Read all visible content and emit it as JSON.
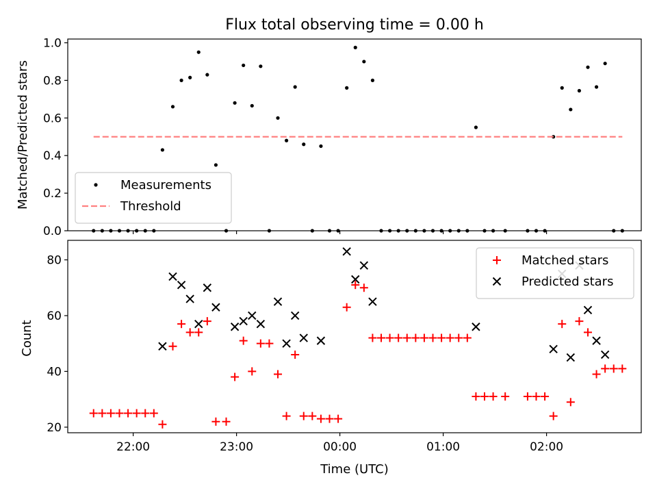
{
  "chart_data": [
    {
      "type": "scatter",
      "title": "Flux total observing time = 0.00 h",
      "xlabel": "",
      "ylabel": "Matched/Predicted stars",
      "xlim": [
        "21:22",
        "02:55"
      ],
      "ylim": [
        0,
        1.02
      ],
      "grid": false,
      "legend_position": "lower-left",
      "yticks": [
        {
          "value": 0.0,
          "label": "0.0"
        },
        {
          "value": 0.2,
          "label": "0.2"
        },
        {
          "value": 0.4,
          "label": "0.4"
        },
        {
          "value": 0.6,
          "label": "0.6"
        },
        {
          "value": 0.8,
          "label": "0.8"
        },
        {
          "value": 1.0,
          "label": "1.0"
        }
      ],
      "series": [
        {
          "name": "Measurements",
          "marker": "dot",
          "color": "#000000",
          "points": [
            [
              "21:37",
              0.0
            ],
            [
              "21:42",
              0.0
            ],
            [
              "21:47",
              0.0
            ],
            [
              "21:52",
              0.0
            ],
            [
              "21:57",
              0.0
            ],
            [
              "22:02",
              0.0
            ],
            [
              "22:07",
              0.0
            ],
            [
              "22:12",
              0.0
            ],
            [
              "22:17",
              0.43
            ],
            [
              "22:23",
              0.66
            ],
            [
              "22:28",
              0.8
            ],
            [
              "22:33",
              0.815
            ],
            [
              "22:38",
              0.95
            ],
            [
              "22:43",
              0.83
            ],
            [
              "22:48",
              0.35
            ],
            [
              "22:54",
              0.0
            ],
            [
              "22:59",
              0.68
            ],
            [
              "23:04",
              0.88
            ],
            [
              "23:09",
              0.665
            ],
            [
              "23:14",
              0.875
            ],
            [
              "23:19",
              0.0
            ],
            [
              "23:24",
              0.6
            ],
            [
              "23:29",
              0.48
            ],
            [
              "23:34",
              0.765
            ],
            [
              "23:39",
              0.46
            ],
            [
              "23:44",
              0.0
            ],
            [
              "23:49",
              0.45
            ],
            [
              "23:54",
              0.0
            ],
            [
              "23:59",
              0.0
            ],
            [
              "00:04",
              0.76
            ],
            [
              "00:09",
              0.975
            ],
            [
              "00:14",
              0.9
            ],
            [
              "00:19",
              0.8
            ],
            [
              "00:24",
              0.0
            ],
            [
              "00:29",
              0.0
            ],
            [
              "00:34",
              0.0
            ],
            [
              "00:39",
              0.0
            ],
            [
              "00:44",
              0.0
            ],
            [
              "00:49",
              0.0
            ],
            [
              "00:54",
              0.0
            ],
            [
              "00:59",
              0.0
            ],
            [
              "01:04",
              0.0
            ],
            [
              "01:09",
              0.0
            ],
            [
              "01:14",
              0.0
            ],
            [
              "01:19",
              0.55
            ],
            [
              "01:24",
              0.0
            ],
            [
              "01:29",
              0.0
            ],
            [
              "01:36",
              0.0
            ],
            [
              "01:49",
              0.0
            ],
            [
              "01:54",
              0.0
            ],
            [
              "01:59",
              0.0
            ],
            [
              "02:04",
              0.5
            ],
            [
              "02:09",
              0.76
            ],
            [
              "02:14",
              0.645
            ],
            [
              "02:19",
              0.745
            ],
            [
              "02:24",
              0.87
            ],
            [
              "02:29",
              0.765
            ],
            [
              "02:34",
              0.89
            ],
            [
              "02:39",
              0.0
            ],
            [
              "02:44",
              0.0
            ]
          ]
        },
        {
          "name": "Threshold",
          "marker": "dashed-line",
          "color": "#ff8080",
          "points": [
            [
              "21:37",
              0.5
            ],
            [
              "02:44",
              0.5
            ]
          ]
        }
      ]
    },
    {
      "type": "scatter",
      "title": "",
      "xlabel": "Time (UTC)",
      "ylabel": "Count",
      "xlim": [
        "21:22",
        "02:55"
      ],
      "ylim": [
        18,
        87
      ],
      "grid": false,
      "legend_position": "upper-right",
      "xticks": [
        {
          "value": "22:00",
          "label": "22:00"
        },
        {
          "value": "23:00",
          "label": "23:00"
        },
        {
          "value": "00:00",
          "label": "00:00"
        },
        {
          "value": "01:00",
          "label": "01:00"
        },
        {
          "value": "02:00",
          "label": "02:00"
        }
      ],
      "yticks": [
        {
          "value": 20,
          "label": "20"
        },
        {
          "value": 40,
          "label": "40"
        },
        {
          "value": 60,
          "label": "60"
        },
        {
          "value": 80,
          "label": "80"
        }
      ],
      "series": [
        {
          "name": "Matched stars",
          "marker": "plus",
          "color": "#ff0000",
          "points": [
            [
              "21:37",
              25
            ],
            [
              "21:42",
              25
            ],
            [
              "21:47",
              25
            ],
            [
              "21:52",
              25
            ],
            [
              "21:57",
              25
            ],
            [
              "22:02",
              25
            ],
            [
              "22:07",
              25
            ],
            [
              "22:12",
              25
            ],
            [
              "22:17",
              21
            ],
            [
              "22:23",
              49
            ],
            [
              "22:28",
              57
            ],
            [
              "22:33",
              54
            ],
            [
              "22:38",
              54
            ],
            [
              "22:43",
              58
            ],
            [
              "22:48",
              22
            ],
            [
              "22:54",
              22
            ],
            [
              "22:59",
              38
            ],
            [
              "23:04",
              51
            ],
            [
              "23:09",
              40
            ],
            [
              "23:14",
              50
            ],
            [
              "23:19",
              50
            ],
            [
              "23:24",
              39
            ],
            [
              "23:29",
              24
            ],
            [
              "23:34",
              46
            ],
            [
              "23:39",
              24
            ],
            [
              "23:44",
              24
            ],
            [
              "23:49",
              23
            ],
            [
              "23:54",
              23
            ],
            [
              "23:59",
              23
            ],
            [
              "00:04",
              63
            ],
            [
              "00:09",
              71
            ],
            [
              "00:14",
              70
            ],
            [
              "00:19",
              52
            ],
            [
              "00:24",
              52
            ],
            [
              "00:29",
              52
            ],
            [
              "00:34",
              52
            ],
            [
              "00:39",
              52
            ],
            [
              "00:44",
              52
            ],
            [
              "00:49",
              52
            ],
            [
              "00:54",
              52
            ],
            [
              "00:59",
              52
            ],
            [
              "01:04",
              52
            ],
            [
              "01:09",
              52
            ],
            [
              "01:14",
              52
            ],
            [
              "01:19",
              31
            ],
            [
              "01:24",
              31
            ],
            [
              "01:29",
              31
            ],
            [
              "01:36",
              31
            ],
            [
              "01:49",
              31
            ],
            [
              "01:54",
              31
            ],
            [
              "01:59",
              31
            ],
            [
              "02:04",
              24
            ],
            [
              "02:09",
              57
            ],
            [
              "02:14",
              29
            ],
            [
              "02:19",
              58
            ],
            [
              "02:24",
              54
            ],
            [
              "02:29",
              39
            ],
            [
              "02:34",
              41
            ],
            [
              "02:39",
              41
            ],
            [
              "02:44",
              41
            ]
          ]
        },
        {
          "name": "Predicted stars",
          "marker": "x",
          "color": "#000000",
          "points": [
            [
              "22:17",
              49
            ],
            [
              "22:23",
              74
            ],
            [
              "22:28",
              71
            ],
            [
              "22:33",
              66
            ],
            [
              "22:38",
              57
            ],
            [
              "22:43",
              70
            ],
            [
              "22:48",
              63
            ],
            [
              "22:59",
              56
            ],
            [
              "23:04",
              58
            ],
            [
              "23:09",
              60
            ],
            [
              "23:14",
              57
            ],
            [
              "23:24",
              65
            ],
            [
              "23:29",
              50
            ],
            [
              "23:34",
              60
            ],
            [
              "23:39",
              52
            ],
            [
              "23:49",
              51
            ],
            [
              "00:04",
              83
            ],
            [
              "00:09",
              73
            ],
            [
              "00:14",
              78
            ],
            [
              "00:19",
              65
            ],
            [
              "01:19",
              56
            ],
            [
              "02:04",
              48
            ],
            [
              "02:09",
              75
            ],
            [
              "02:14",
              45
            ],
            [
              "02:19",
              78
            ],
            [
              "02:24",
              62
            ],
            [
              "02:29",
              51
            ],
            [
              "02:34",
              46
            ]
          ]
        }
      ]
    }
  ]
}
